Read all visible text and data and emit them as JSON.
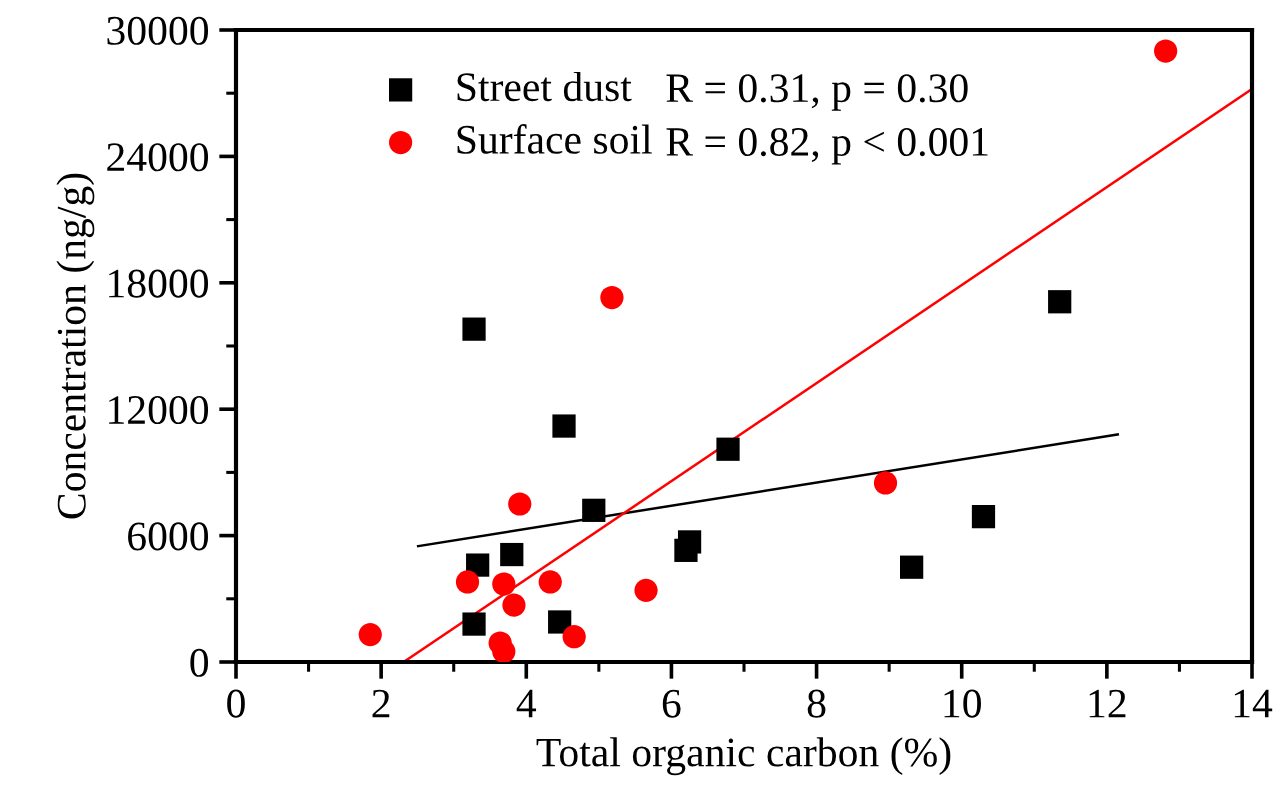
{
  "chart_data": {
    "type": "scatter",
    "xlabel": "Total organic carbon (%)",
    "ylabel": "Concentration (ng/g)",
    "xlim": [
      0,
      14
    ],
    "ylim": [
      0,
      30000
    ],
    "xticks": [
      0,
      2,
      4,
      6,
      8,
      10,
      12,
      14
    ],
    "yticks": [
      0,
      6000,
      12000,
      18000,
      24000,
      30000
    ],
    "grid": false,
    "legend": "top left",
    "series": [
      {
        "name": "Street dust",
        "color": "#000000",
        "marker": "square",
        "x": [
          3.28,
          3.33,
          3.28,
          3.8,
          4.52,
          4.46,
          4.93,
          6.2,
          6.25,
          6.78,
          9.31,
          10.3,
          11.35
        ],
        "values": [
          15800,
          4600,
          1800,
          5100,
          11200,
          1900,
          7200,
          5300,
          5700,
          10100,
          4500,
          6900,
          17100
        ]
      },
      {
        "name": "Surface soil",
        "color": "#ff0000",
        "marker": "circle",
        "x": [
          1.85,
          3.19,
          3.69,
          3.83,
          3.91,
          4.33,
          3.64,
          3.69,
          4.66,
          5.18,
          5.65,
          8.95,
          12.81
        ],
        "values": [
          1300,
          3800,
          3700,
          2700,
          7500,
          3800,
          900,
          500,
          1200,
          17300,
          3400,
          8500,
          29000
        ]
      },
      {
        "type": "line",
        "color": "#000000",
        "x": [
          2.51,
          12.15
        ],
        "values": [
          5500,
          10800
        ]
      },
      {
        "type": "line",
        "color": "#ff0000",
        "x": [
          2.31,
          14
        ],
        "values": [
          0,
          27200
        ]
      }
    ],
    "annotations": [
      "R = 0.31, p = 0.30",
      "R = 0.82, p < 0.001"
    ]
  }
}
